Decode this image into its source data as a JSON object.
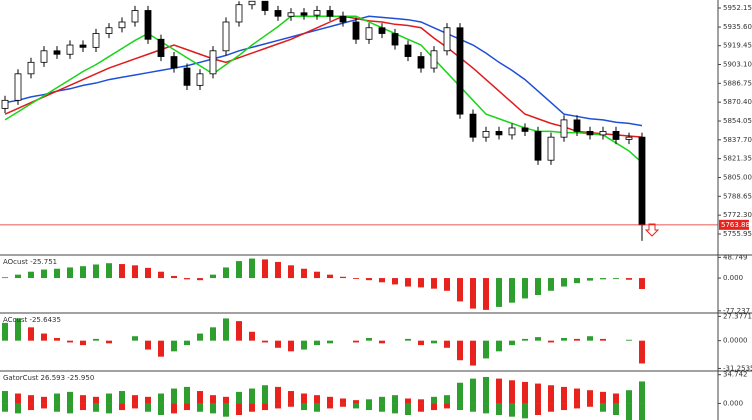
{
  "chart_data": [
    {
      "type": "candlestick",
      "open": [
        5865,
        5872,
        5895,
        5905,
        5915,
        5912,
        5920,
        5918,
        5930,
        5935,
        5940,
        5950,
        5925,
        5910,
        5900,
        5885,
        5895,
        5915,
        5940,
        5955,
        5958,
        5950,
        5945,
        5948,
        5946,
        5950,
        5945,
        5940,
        5925,
        5935,
        5930,
        5920,
        5910,
        5900,
        5915,
        5935,
        5860,
        5840,
        5845,
        5842,
        5848,
        5845,
        5820,
        5840,
        5855,
        5845,
        5842,
        5845,
        5838,
        5840
      ],
      "high": [
        5876,
        5899,
        5909,
        5919,
        5919,
        5924,
        5924,
        5934,
        5939,
        5944,
        5954,
        5954,
        5929,
        5914,
        5904,
        5899,
        5919,
        5944,
        5958,
        5958,
        5958,
        5954,
        5952,
        5952,
        5954,
        5954,
        5949,
        5944,
        5939,
        5939,
        5934,
        5924,
        5914,
        5919,
        5939,
        5939,
        5864,
        5849,
        5849,
        5852,
        5852,
        5849,
        5844,
        5859,
        5859,
        5849,
        5849,
        5849,
        5844,
        5844
      ],
      "low": [
        5861,
        5868,
        5891,
        5901,
        5908,
        5908,
        5914,
        5914,
        5926,
        5931,
        5936,
        5921,
        5906,
        5896,
        5881,
        5881,
        5891,
        5911,
        5936,
        5951,
        5946,
        5941,
        5941,
        5942,
        5942,
        5941,
        5936,
        5921,
        5921,
        5926,
        5916,
        5906,
        5896,
        5896,
        5911,
        5856,
        5836,
        5836,
        5838,
        5838,
        5841,
        5816,
        5816,
        5836,
        5841,
        5838,
        5838,
        5834,
        5834,
        5750
      ],
      "close": [
        5872,
        5895,
        5905,
        5915,
        5912,
        5920,
        5918,
        5930,
        5935,
        5940,
        5950,
        5925,
        5910,
        5900,
        5885,
        5895,
        5915,
        5940,
        5955,
        5958,
        5950,
        5945,
        5948,
        5946,
        5950,
        5945,
        5940,
        5925,
        5935,
        5930,
        5920,
        5910,
        5900,
        5915,
        5935,
        5860,
        5840,
        5845,
        5842,
        5848,
        5845,
        5820,
        5840,
        5855,
        5845,
        5842,
        5845,
        5838,
        5840,
        5763.88
      ],
      "series": [
        {
          "color": "#1f4fd6",
          "values": [
            5870,
            5872,
            5875,
            5877,
            5880,
            5882,
            5885,
            5887,
            5890,
            5892,
            5894,
            5896,
            5898,
            5900,
            5902,
            5905,
            5908,
            5911,
            5915,
            5918,
            5921,
            5924,
            5927,
            5930,
            5933,
            5936,
            5939,
            5942,
            5945,
            5944,
            5943,
            5942,
            5940,
            5935,
            5930,
            5925,
            5920,
            5913,
            5905,
            5898,
            5890,
            5880,
            5870,
            5860,
            5858,
            5856,
            5855,
            5853,
            5852,
            5850
          ]
        },
        {
          "color": "#e01b1b",
          "values": [
            5860,
            5865,
            5870,
            5875,
            5880,
            5885,
            5890,
            5895,
            5900,
            5904,
            5908,
            5912,
            5916,
            5920,
            5916,
            5912,
            5908,
            5905,
            5909,
            5913,
            5917,
            5921,
            5925,
            5930,
            5935,
            5940,
            5945,
            5943,
            5941,
            5940,
            5938,
            5937,
            5935,
            5926,
            5918,
            5909,
            5900,
            5890,
            5880,
            5870,
            5860,
            5856,
            5852,
            5849,
            5845,
            5844,
            5843,
            5842,
            5841,
            5840
          ]
        },
        {
          "color": "#19d419",
          "values": [
            5855,
            5862,
            5869,
            5876,
            5883,
            5890,
            5897,
            5903,
            5910,
            5917,
            5924,
            5930,
            5923,
            5916,
            5909,
            5902,
            5895,
            5903,
            5911,
            5920,
            5928,
            5936,
            5945,
            5945,
            5945,
            5945,
            5945,
            5945,
            5940,
            5935,
            5930,
            5925,
            5920,
            5908,
            5896,
            5884,
            5872,
            5860,
            5856,
            5852,
            5848,
            5845,
            5845,
            5844,
            5844,
            5843,
            5842,
            5835,
            5828,
            5818
          ]
        }
      ],
      "last_price": 5763.88,
      "ylim": [
        5737.7,
        5959.1
      ],
      "yticks": [
        5952.15,
        {
          "value": 5935.6,
          "label": "5935.60"
        },
        5919.45,
        {
          "value": 5903.1,
          "label": "5903.10"
        },
        5886.75,
        {
          "value": 5870.4,
          "label": "5870.40"
        },
        5854.05,
        {
          "value": 5837.7,
          "label": "5837.70"
        },
        5821.35,
        {
          "value": 5805,
          "label": "5805.00"
        },
        5788.65,
        {
          "value": 5772.3,
          "label": "5772.30"
        },
        5755.95
      ]
    },
    {
      "type": "histogram",
      "title": "AOcust -25.751",
      "up_color": "#2e9e2e",
      "down_color": "#e8221c",
      "values": [
        2,
        8,
        15,
        20,
        22,
        25,
        28,
        32,
        35,
        33,
        30,
        24,
        15,
        5,
        -3,
        -5,
        8,
        25,
        40,
        46,
        44,
        38,
        30,
        22,
        15,
        8,
        3,
        -2,
        -5,
        -10,
        -15,
        -20,
        -22,
        -25,
        -30,
        -55,
        -72,
        -75,
        -68,
        -58,
        -48,
        -40,
        -30,
        -20,
        -12,
        -6,
        -3,
        -2,
        -4,
        -25.751
      ],
      "ylim": [
        -80,
        52
      ],
      "yticks": [
        48.749,
        {
          "value": 0,
          "label": "0.000"
        },
        -77.237
      ]
    },
    {
      "type": "histogram",
      "title": "ACcust -25.6435",
      "up_color": "#2e9e2e",
      "down_color": "#e8221c",
      "values": [
        20,
        25,
        15,
        8,
        3,
        -2,
        -5,
        2,
        -3,
        0,
        5,
        -10,
        -18,
        -12,
        -5,
        8,
        15,
        25,
        22,
        10,
        -2,
        -8,
        -12,
        -10,
        -5,
        -3,
        0,
        -2,
        3,
        -3,
        0,
        2,
        -5,
        -3,
        -8,
        -22,
        -28,
        -20,
        -12,
        -5,
        2,
        4,
        -2,
        3,
        2,
        5,
        2,
        0,
        1,
        -25.6435
      ],
      "ylim": [
        -33,
        30
      ],
      "yticks": [
        27.3771,
        {
          "value": 0,
          "label": "0.0000"
        },
        -31.2535
      ]
    },
    {
      "type": "gator",
      "title": "GatorCust 26.593 -25.950",
      "up_color": "#2e9e2e",
      "down_color": "#e8221c",
      "series": [
        {
          "values": [
            15,
            12,
            10,
            8,
            12,
            14,
            10,
            8,
            12,
            15,
            10,
            8,
            12,
            18,
            20,
            15,
            10,
            8,
            14,
            18,
            22,
            20,
            15,
            12,
            10,
            8,
            6,
            4,
            5,
            8,
            10,
            6,
            5,
            8,
            10,
            25,
            30,
            32,
            30,
            28,
            26,
            24,
            22,
            20,
            18,
            16,
            14,
            12,
            16,
            26.593
          ]
        },
        {
          "values": [
            -10,
            -12,
            -8,
            -6,
            -10,
            -12,
            -8,
            -10,
            -12,
            -8,
            -6,
            -10,
            -14,
            -12,
            -8,
            -10,
            -12,
            -16,
            -14,
            -10,
            -8,
            -6,
            -4,
            -8,
            -10,
            -6,
            -4,
            -6,
            -8,
            -10,
            -12,
            -14,
            -10,
            -8,
            -6,
            -8,
            -10,
            -12,
            -14,
            -16,
            -18,
            -14,
            -10,
            -8,
            -6,
            -4,
            -10,
            -14,
            -20,
            -25.95
          ]
        }
      ],
      "ylim": [
        -20,
        38
      ],
      "yticks": [
        34.742,
        {
          "value": 0,
          "label": "0.000"
        }
      ]
    }
  ]
}
